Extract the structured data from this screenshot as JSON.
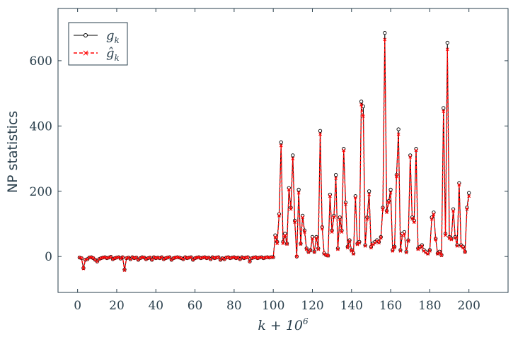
{
  "chart_data": {
    "type": "line",
    "xlabel": "k + 10^6",
    "xlabel_base": "k + 10",
    "xlabel_exp": "6",
    "ylabel": "NP statistics",
    "xlim": [
      -10,
      220
    ],
    "ylim": [
      -110,
      760
    ],
    "xticks": [
      0,
      20,
      40,
      60,
      80,
      100,
      120,
      140,
      160,
      180,
      200
    ],
    "yticks": [
      0,
      200,
      400,
      600
    ],
    "grid": false,
    "legend_position": "top-left",
    "colors": {
      "series1": "#000000",
      "series2": "#ff0000",
      "axis": "#2a3f4c"
    },
    "x": [
      1,
      2,
      3,
      4,
      5,
      6,
      7,
      8,
      9,
      10,
      11,
      12,
      13,
      14,
      15,
      16,
      17,
      18,
      19,
      20,
      21,
      22,
      23,
      24,
      25,
      26,
      27,
      28,
      29,
      30,
      31,
      32,
      33,
      34,
      35,
      36,
      37,
      38,
      39,
      40,
      41,
      42,
      43,
      44,
      45,
      46,
      47,
      48,
      49,
      50,
      51,
      52,
      53,
      54,
      55,
      56,
      57,
      58,
      59,
      60,
      61,
      62,
      63,
      64,
      65,
      66,
      67,
      68,
      69,
      70,
      71,
      72,
      73,
      74,
      75,
      76,
      77,
      78,
      79,
      80,
      81,
      82,
      83,
      84,
      85,
      86,
      87,
      88,
      89,
      90,
      91,
      92,
      93,
      94,
      95,
      96,
      97,
      98,
      99,
      100,
      101,
      102,
      103,
      104,
      105,
      106,
      107,
      108,
      109,
      110,
      111,
      112,
      113,
      114,
      115,
      116,
      117,
      118,
      119,
      120,
      121,
      122,
      123,
      124,
      125,
      126,
      127,
      128,
      129,
      130,
      131,
      132,
      133,
      134,
      135,
      136,
      137,
      138,
      139,
      140,
      141,
      142,
      143,
      144,
      145,
      146,
      147,
      148,
      149,
      150,
      151,
      152,
      153,
      154,
      155,
      156,
      157,
      158,
      159,
      160,
      161,
      162,
      163,
      164,
      165,
      166,
      167,
      168,
      169,
      170,
      171,
      172,
      173,
      174,
      175,
      176,
      177,
      178,
      179,
      180,
      181,
      182,
      183,
      184,
      185,
      186,
      187,
      188,
      189,
      190,
      191,
      192,
      193,
      194,
      195,
      196,
      197,
      198,
      199,
      200
    ],
    "series": [
      {
        "name": "g_k",
        "label_main": "g",
        "label_sub": "k",
        "values": [
          -3,
          -5,
          -35,
          -10,
          -8,
          -3,
          -2,
          -5,
          -10,
          -15,
          -8,
          -5,
          -3,
          -2,
          -5,
          -3,
          -1,
          -8,
          -5,
          -3,
          -2,
          -6,
          -2,
          -40,
          -5,
          -3,
          -8,
          -2,
          -5,
          -3,
          -10,
          -5,
          -2,
          -3,
          -8,
          -5,
          -3,
          -10,
          -2,
          -5,
          -3,
          -5,
          -2,
          -8,
          -5,
          -3,
          -2,
          -10,
          -5,
          -3,
          -2,
          -3,
          -5,
          -8,
          -2,
          -5,
          -3,
          -2,
          -10,
          -5,
          -3,
          -2,
          -5,
          -3,
          -2,
          -5,
          -3,
          -8,
          -2,
          -5,
          -3,
          -2,
          -10,
          -5,
          -8,
          -3,
          -2,
          -5,
          -3,
          -2,
          -5,
          -3,
          -8,
          -2,
          -5,
          -3,
          -2,
          -15,
          -5,
          -3,
          -2,
          -5,
          -3,
          -2,
          -5,
          -3,
          -2,
          -3,
          -2,
          -2,
          65,
          45,
          130,
          350,
          45,
          70,
          40,
          210,
          150,
          310,
          110,
          0,
          205,
          40,
          125,
          80,
          25,
          15,
          20,
          60,
          15,
          60,
          25,
          385,
          90,
          10,
          5,
          3,
          190,
          80,
          125,
          250,
          25,
          120,
          80,
          330,
          165,
          30,
          50,
          20,
          10,
          185,
          40,
          45,
          475,
          460,
          35,
          120,
          200,
          30,
          40,
          45,
          50,
          45,
          60,
          150,
          685,
          140,
          170,
          205,
          20,
          30,
          250,
          390,
          20,
          70,
          75,
          15,
          50,
          310,
          120,
          110,
          330,
          25,
          30,
          35,
          20,
          15,
          10,
          20,
          120,
          135,
          55,
          10,
          15,
          5,
          455,
          70,
          655,
          60,
          55,
          145,
          60,
          35,
          225,
          35,
          30,
          15,
          150,
          195
        ]
      },
      {
        "name": "ĝ_k",
        "label_main": "ĝ",
        "label_sub": "k",
        "values": [
          -3,
          -5,
          -37,
          -10,
          -8,
          -3,
          -2,
          -5,
          -10,
          -15,
          -8,
          -5,
          -3,
          -2,
          -5,
          -3,
          -1,
          -8,
          -5,
          -3,
          -2,
          -6,
          -2,
          -42,
          -5,
          -3,
          -8,
          -2,
          -5,
          -3,
          -10,
          -5,
          -2,
          -3,
          -8,
          -5,
          -3,
          -10,
          -2,
          -5,
          -3,
          -5,
          -2,
          -8,
          -5,
          -3,
          -2,
          -10,
          -5,
          -3,
          -2,
          -3,
          -5,
          -8,
          -2,
          -5,
          -3,
          -2,
          -10,
          -5,
          -3,
          -2,
          -5,
          -3,
          -2,
          -5,
          -3,
          -8,
          -2,
          -5,
          -3,
          -2,
          -10,
          -5,
          -8,
          -3,
          -2,
          -5,
          -3,
          -2,
          -5,
          -3,
          -8,
          -2,
          -5,
          -3,
          -2,
          -15,
          -5,
          -3,
          -2,
          -5,
          -3,
          -2,
          -5,
          -3,
          -2,
          -3,
          -2,
          -2,
          60,
          40,
          125,
          340,
          40,
          65,
          38,
          205,
          145,
          300,
          105,
          0,
          195,
          38,
          120,
          75,
          22,
          13,
          18,
          55,
          13,
          57,
          22,
          375,
          85,
          8,
          4,
          2,
          185,
          75,
          120,
          240,
          22,
          115,
          75,
          325,
          160,
          27,
          47,
          17,
          8,
          180,
          37,
          42,
          465,
          430,
          32,
          115,
          190,
          27,
          37,
          42,
          47,
          42,
          57,
          145,
          665,
          135,
          165,
          195,
          17,
          27,
          245,
          375,
          17,
          65,
          70,
          12,
          47,
          305,
          115,
          105,
          325,
          22,
          27,
          32,
          17,
          12,
          8,
          17,
          115,
          130,
          52,
          8,
          12,
          3,
          445,
          65,
          635,
          55,
          52,
          140,
          57,
          32,
          220,
          32,
          27,
          13,
          145,
          185
        ]
      }
    ]
  }
}
